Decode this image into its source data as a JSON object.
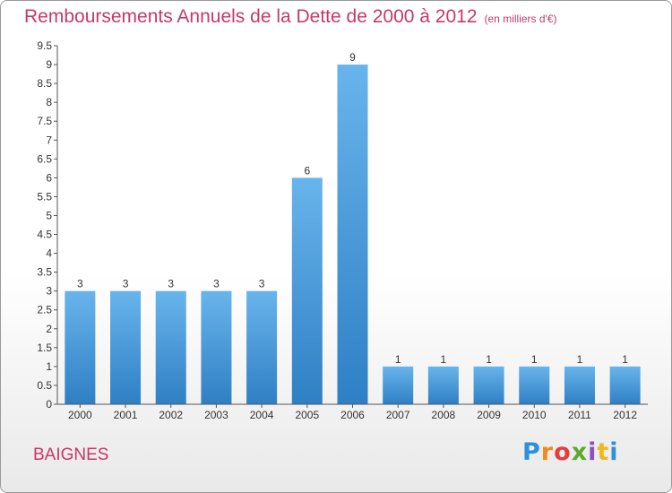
{
  "title": "Remboursements Annuels de la Dette de 2000 à 2012",
  "unit": "(en milliers d'€)",
  "commune": "BAIGNES",
  "logo": {
    "letters": [
      "P",
      "r",
      "o",
      "x",
      "i",
      "t",
      "i"
    ],
    "colors": [
      "#2f8fd8",
      "#f08a1c",
      "#e83c3c",
      "#5aaa32",
      "#8a4fc8",
      "#f0b81c",
      "#2f8fd8"
    ]
  },
  "colors": {
    "bar": "#4a9ee0",
    "bar_top": "#68b4ec",
    "bar_bottom": "#2f7fc4",
    "title": "#c8386a"
  },
  "chart_data": {
    "type": "bar",
    "categories": [
      "2000",
      "2001",
      "2002",
      "2003",
      "2004",
      "2005",
      "2006",
      "2007",
      "2008",
      "2009",
      "2010",
      "2011",
      "2012"
    ],
    "values": [
      3,
      3,
      3,
      3,
      3,
      6,
      9,
      1,
      1,
      1,
      1,
      1,
      1
    ],
    "value_labels": [
      "3",
      "3",
      "3",
      "3",
      "3",
      "6",
      "9",
      "1",
      "1",
      "1",
      "1",
      "1",
      "1"
    ],
    "ylim": [
      0,
      9.5
    ],
    "yticks": [
      0,
      0.5,
      1,
      1.5,
      2,
      2.5,
      3,
      3.5,
      4,
      4.5,
      5,
      5.5,
      6,
      6.5,
      7,
      7.5,
      8,
      8.5,
      9,
      9.5
    ],
    "ytick_labels": [
      "0",
      "0.5",
      "1",
      "1.5",
      "2",
      "2.5",
      "3",
      "3.5",
      "4",
      "4.5",
      "5",
      "5.5",
      "6",
      "6.5",
      "7",
      "7.5",
      "8",
      "8.5",
      "9",
      "9.5"
    ],
    "xlabel": "",
    "ylabel": "",
    "grid": false,
    "legend": "none"
  }
}
